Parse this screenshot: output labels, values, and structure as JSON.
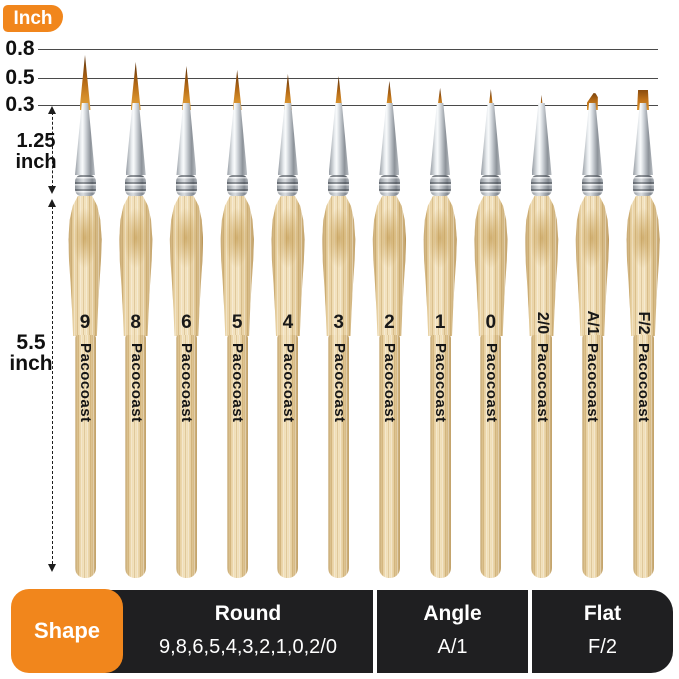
{
  "header": {
    "unit_badge": "Inch"
  },
  "scale": {
    "ticks": [
      {
        "label": "0.8"
      },
      {
        "label": "0.5"
      },
      {
        "label": "0.3"
      }
    ],
    "tip_measure": {
      "value": "1.25",
      "unit": "inch"
    },
    "handle_measure": {
      "value": "5.5",
      "unit": "inch"
    }
  },
  "brand": "Pacocoast",
  "brushes": [
    {
      "size": "9",
      "shape": "round"
    },
    {
      "size": "8",
      "shape": "round"
    },
    {
      "size": "6",
      "shape": "round"
    },
    {
      "size": "5",
      "shape": "round"
    },
    {
      "size": "4",
      "shape": "round"
    },
    {
      "size": "3",
      "shape": "round"
    },
    {
      "size": "2",
      "shape": "round"
    },
    {
      "size": "1",
      "shape": "round"
    },
    {
      "size": "0",
      "shape": "round"
    },
    {
      "size": "2/0",
      "shape": "round"
    },
    {
      "size": "A/1",
      "shape": "angle"
    },
    {
      "size": "F/2",
      "shape": "flat"
    }
  ],
  "legend": {
    "shape_label": "Shape",
    "sections": [
      {
        "title": "Round",
        "sizes": "9,8,6,5,4,3,2,1,0,2/0"
      },
      {
        "title": "Angle",
        "sizes": "A/1"
      },
      {
        "title": "Flat",
        "sizes": "F/2"
      }
    ]
  },
  "colors": {
    "accent_orange": "#F1861C",
    "legend_black": "#1F1F21",
    "wood_handle": "#F1DCAE",
    "ferrule_silver": "#C9CCD1",
    "bristle_orange": "#B56A15"
  }
}
